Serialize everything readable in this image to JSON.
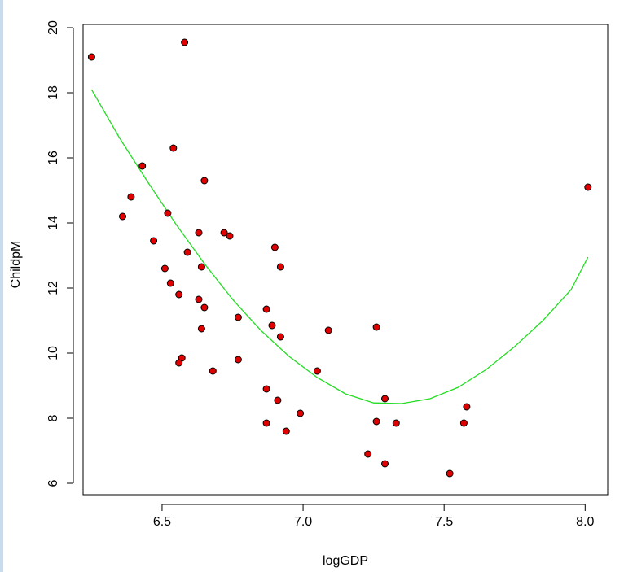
{
  "chart_data": {
    "type": "scatter",
    "title": "",
    "xlabel": "logGDP",
    "ylabel": "ChildpM",
    "xlim": [
      6.22,
      8.08
    ],
    "ylim": [
      5.65,
      20.1
    ],
    "xticks": [
      6.5,
      7.0,
      7.5,
      8.0
    ],
    "xtick_labels": [
      "6.5",
      "7.0",
      "7.5",
      "8.0"
    ],
    "yticks": [
      6,
      8,
      10,
      12,
      14,
      16,
      18,
      20
    ],
    "ytick_labels": [
      "6",
      "8",
      "10",
      "12",
      "14",
      "16",
      "18",
      "20"
    ],
    "grid": false,
    "point_color": "#e00000",
    "point_edge": "#000000",
    "fit_color": "#22dd22",
    "series": [
      {
        "kind": "points",
        "x": [
          6.25,
          6.58,
          6.54,
          6.43,
          6.65,
          6.39,
          6.36,
          6.52,
          6.47,
          6.63,
          6.59,
          6.72,
          6.74,
          6.9,
          6.51,
          6.64,
          6.92,
          6.53,
          6.56,
          6.63,
          6.65,
          6.77,
          6.87,
          6.64,
          6.89,
          6.92,
          6.57,
          6.56,
          6.77,
          6.68,
          7.09,
          7.26,
          7.05,
          6.87,
          6.91,
          6.99,
          6.87,
          6.94,
          7.29,
          7.26,
          7.33,
          7.23,
          7.29,
          7.58,
          7.57,
          7.52,
          8.01
        ],
        "y": [
          19.1,
          19.55,
          16.3,
          15.75,
          15.3,
          14.8,
          14.2,
          14.3,
          13.45,
          13.7,
          13.1,
          13.7,
          13.6,
          13.25,
          12.6,
          12.65,
          12.65,
          12.15,
          11.8,
          11.65,
          11.4,
          11.1,
          11.35,
          10.75,
          10.85,
          10.5,
          9.85,
          9.7,
          9.8,
          9.45,
          10.7,
          10.8,
          9.45,
          8.9,
          8.55,
          8.15,
          7.85,
          7.6,
          8.6,
          7.9,
          7.85,
          6.9,
          6.6,
          8.35,
          7.85,
          6.3,
          15.1
        ]
      },
      {
        "kind": "fit-line",
        "x": [
          6.25,
          6.35,
          6.45,
          6.55,
          6.65,
          6.75,
          6.85,
          6.95,
          7.05,
          7.15,
          7.25,
          7.35,
          7.45,
          7.55,
          7.65,
          7.75,
          7.85,
          7.95,
          8.01
        ],
        "y": [
          18.1,
          16.6,
          15.25,
          13.95,
          12.75,
          11.65,
          10.7,
          9.9,
          9.25,
          8.75,
          8.47,
          8.45,
          8.6,
          8.95,
          9.5,
          10.2,
          11.0,
          11.95,
          12.95
        ]
      }
    ]
  }
}
